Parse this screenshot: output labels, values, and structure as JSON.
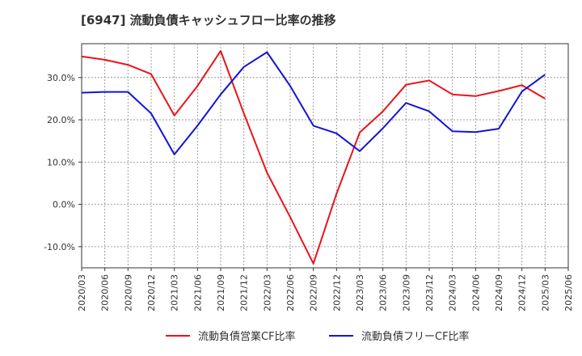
{
  "chart_data": {
    "type": "line",
    "title": "[6947]  流動負債キャッシュフロー比率の推移",
    "xlabel": "",
    "ylabel": "",
    "ylim": [
      -15,
      38
    ],
    "yticks": [
      -10,
      0,
      10,
      20,
      30
    ],
    "ytick_labels": [
      "-10.0%",
      "0.0%",
      "10.0%",
      "20.0%",
      "30.0%"
    ],
    "categories": [
      "2020/03",
      "2020/06",
      "2020/09",
      "2020/12",
      "2021/03",
      "2021/06",
      "2021/09",
      "2021/12",
      "2022/03",
      "2022/06",
      "2022/09",
      "2022/12",
      "2023/03",
      "2023/06",
      "2023/09",
      "2023/12",
      "2024/03",
      "2024/06",
      "2024/09",
      "2024/12",
      "2025/03",
      "2025/06"
    ],
    "grid": true,
    "legend_position": "bottom",
    "series": [
      {
        "name": "流動負債営業CF比率",
        "color": "#e8141b",
        "values": [
          35.0,
          34.2,
          33.0,
          30.8,
          21.0,
          28.0,
          36.3,
          21.5,
          7.5,
          -3.0,
          -14.0,
          2.5,
          17.0,
          22.0,
          28.3,
          29.3,
          26.0,
          25.6,
          26.8,
          28.2,
          25.0,
          null
        ]
      },
      {
        "name": "流動負債フリーCF比率",
        "color": "#1414d2",
        "values": [
          26.4,
          26.6,
          26.6,
          21.5,
          11.8,
          18.6,
          26.0,
          32.5,
          36.0,
          28.0,
          18.6,
          16.8,
          12.6,
          18.0,
          24.0,
          22.0,
          17.3,
          17.1,
          17.9,
          26.7,
          30.7,
          null
        ]
      }
    ]
  }
}
